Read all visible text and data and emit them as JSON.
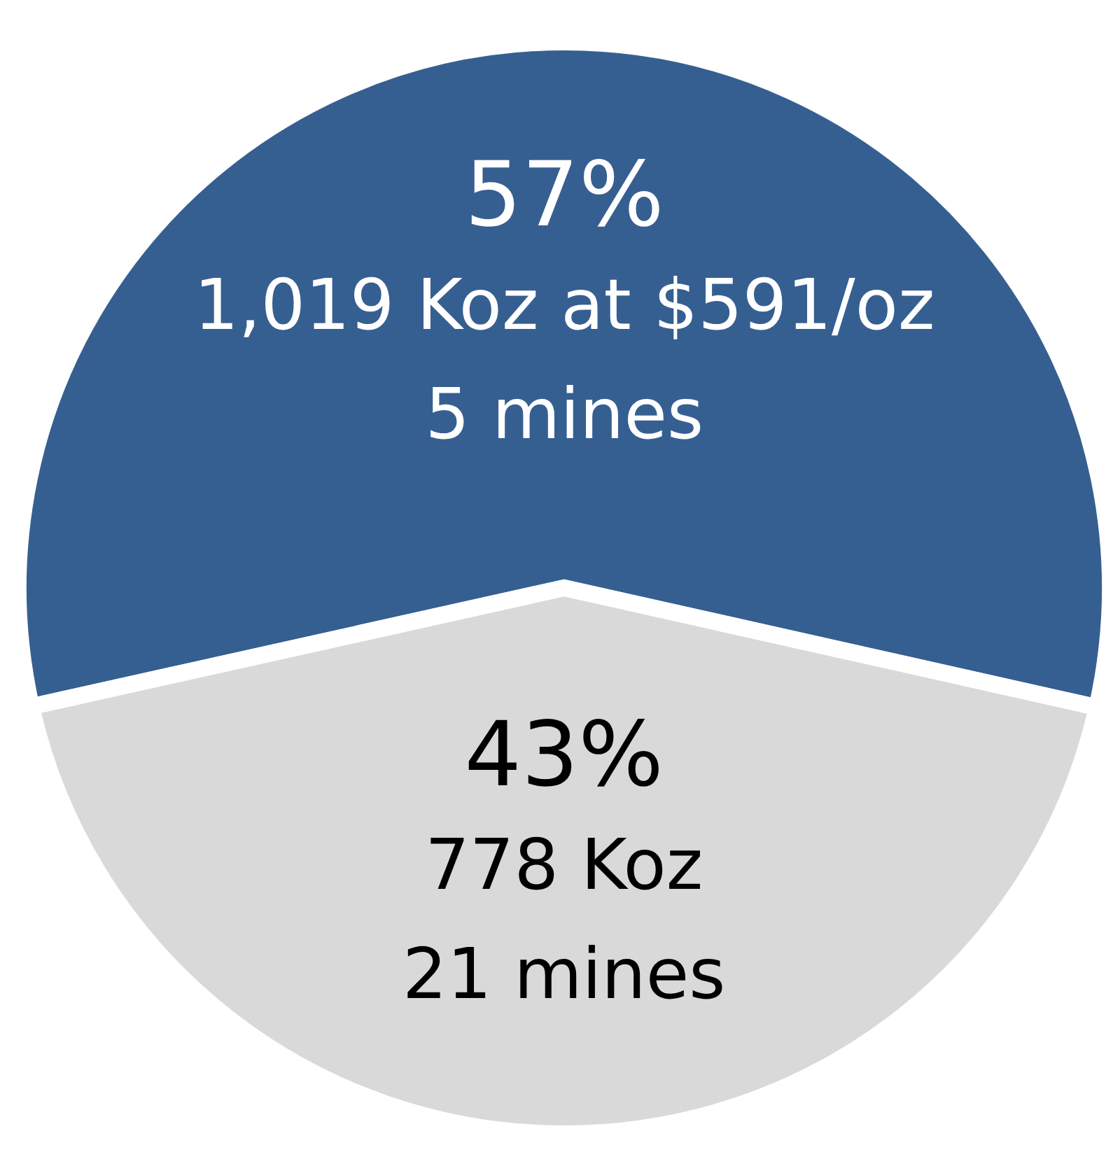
{
  "chart_data": {
    "type": "pie",
    "categories": [
      null,
      null
    ],
    "values": [
      57,
      43
    ],
    "colors": [
      "#365f91",
      "#d9d9d9"
    ],
    "value_labels": [
      "57%",
      "43%"
    ],
    "annotations": [
      "1,019 Koz at $591/oz",
      "5 mines",
      "778 Koz",
      "21 mines"
    ]
  }
}
